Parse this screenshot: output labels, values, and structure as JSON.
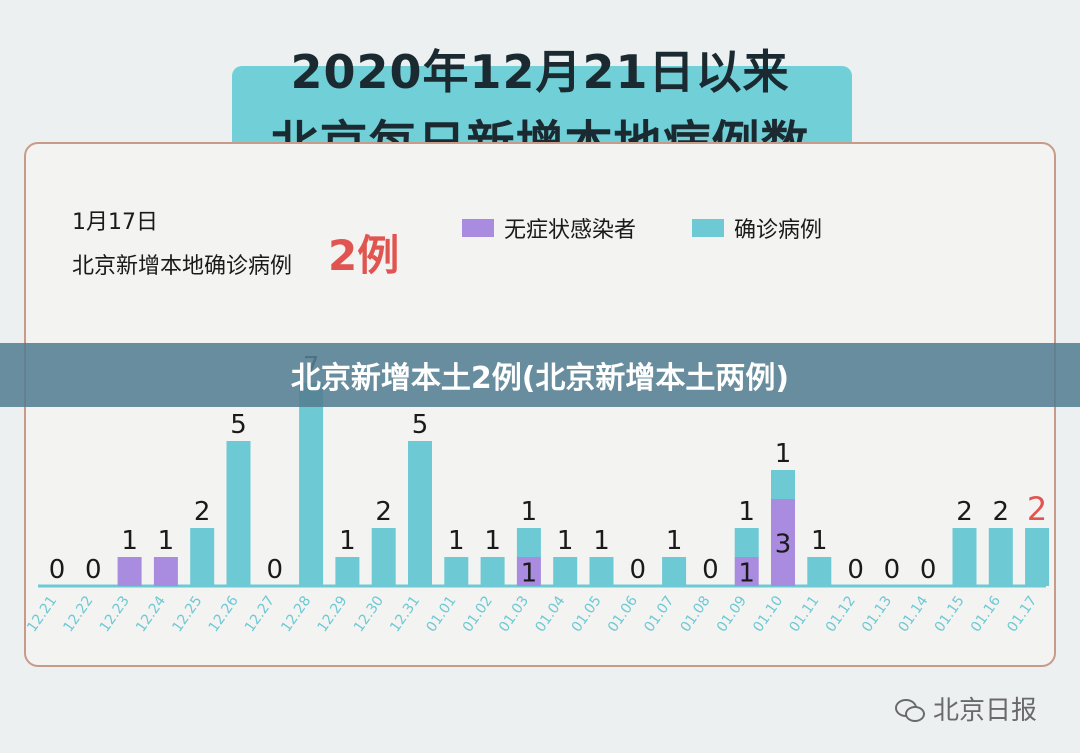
{
  "header": {
    "line1": "2020年12月21日以来",
    "line2": "北京每日新增本地病例数"
  },
  "summary": {
    "date": "1月17日",
    "label": "北京新增本地确诊病例",
    "value": "2例"
  },
  "banner": {
    "text": "北京新增本土2例(北京新增本土两例)"
  },
  "watermark": {
    "text": "北京日报",
    "icon": "wechat-icon"
  },
  "chart_data": {
    "type": "bar",
    "stacked": true,
    "categories": [
      "12.21",
      "12.22",
      "12.23",
      "12.24",
      "12.25",
      "12.26",
      "12.27",
      "12.28",
      "12.29",
      "12.30",
      "12.31",
      "01.01",
      "01.02",
      "01.03",
      "01.04",
      "01.05",
      "01.06",
      "01.07",
      "01.08",
      "01.09",
      "01.10",
      "01.11",
      "01.12",
      "01.13",
      "01.14",
      "01.15",
      "01.16",
      "01.17"
    ],
    "series": [
      {
        "name": "无症状感染者",
        "color": "#a98be0",
        "values": [
          0,
          0,
          1,
          1,
          0,
          0,
          0,
          0,
          0,
          0,
          0,
          0,
          0,
          1,
          0,
          0,
          0,
          0,
          0,
          1,
          3,
          0,
          0,
          0,
          0,
          0,
          0,
          0
        ]
      },
      {
        "name": "确诊病例",
        "color": "#6dc9d4",
        "values": [
          0,
          0,
          0,
          0,
          2,
          5,
          0,
          7,
          1,
          2,
          5,
          1,
          1,
          1,
          1,
          1,
          0,
          1,
          0,
          1,
          1,
          1,
          0,
          0,
          0,
          2,
          2,
          2
        ]
      }
    ],
    "highlight_color": "#e0554f",
    "highlight_index": 27,
    "legend": "top-right"
  }
}
